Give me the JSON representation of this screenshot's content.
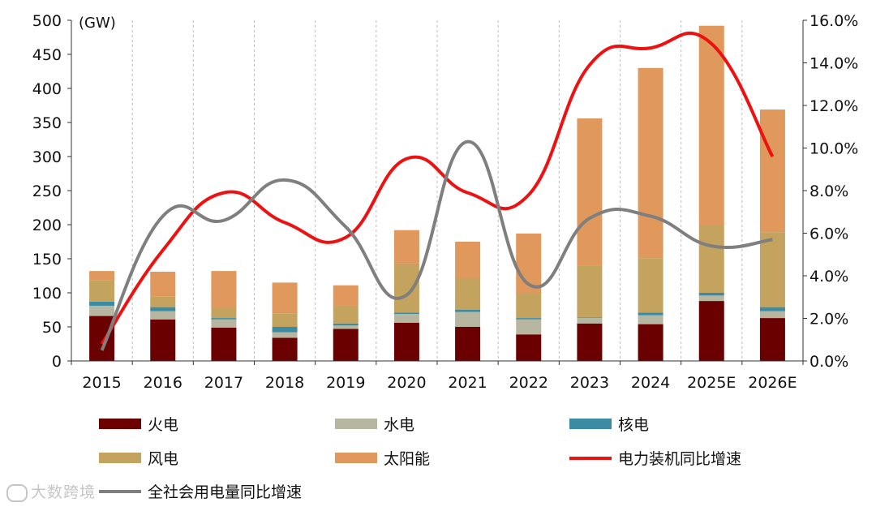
{
  "chart_data": {
    "type": "bar",
    "stacked": true,
    "unit_label": "(GW)",
    "categories": [
      "2015",
      "2016",
      "2017",
      "2018",
      "2019",
      "2020",
      "2021",
      "2022",
      "2023",
      "2024",
      "2025E",
      "2026E"
    ],
    "left_axis": {
      "min": 0,
      "max": 500,
      "step": 50,
      "ticks": [
        "0",
        "50",
        "100",
        "150",
        "200",
        "250",
        "300",
        "350",
        "400",
        "450",
        "500"
      ]
    },
    "right_axis": {
      "min": 0,
      "max": 16,
      "step": 2,
      "ticks": [
        "0.0%",
        "2.0%",
        "4.0%",
        "6.0%",
        "8.0%",
        "10.0%",
        "12.0%",
        "14.0%",
        "16.0%"
      ]
    },
    "series": [
      {
        "name": "火电",
        "color": "#6b0000",
        "values": [
          66,
          61,
          49,
          34,
          47,
          56,
          50,
          39,
          55,
          54,
          88,
          63
        ]
      },
      {
        "name": "水电",
        "color": "#b7b6a0",
        "values": [
          15,
          12,
          12,
          8,
          5,
          13,
          22,
          22,
          8,
          13,
          8,
          10
        ]
      },
      {
        "name": "核电",
        "color": "#3a8ba3",
        "values": [
          6,
          6,
          2,
          8,
          3,
          2,
          3,
          2,
          1,
          4,
          4,
          6
        ]
      },
      {
        "name": "风电",
        "color": "#c4a35e",
        "values": [
          31,
          16,
          15,
          20,
          26,
          72,
          47,
          37,
          76,
          80,
          100,
          110
        ]
      },
      {
        "name": "太阳能",
        "color": "#e0985d",
        "values": [
          14,
          36,
          54,
          45,
          30,
          49,
          53,
          87,
          216,
          279,
          292,
          180
        ]
      }
    ],
    "lines": [
      {
        "name": "电力装机同比增速",
        "color": "#ee1111",
        "axis": "right",
        "values": [
          0.8,
          5.2,
          7.9,
          6.5,
          5.8,
          9.5,
          7.9,
          7.8,
          13.9,
          14.7,
          14.9,
          9.6
        ]
      },
      {
        "name": "全社会用电量同比增速",
        "color": "#7f7f7f",
        "axis": "right",
        "values": [
          0.5,
          6.8,
          6.6,
          8.5,
          6.3,
          3.1,
          10.3,
          3.6,
          6.7,
          6.8,
          5.4,
          5.7
        ]
      }
    ],
    "legend": [
      {
        "name": "火电",
        "kind": "bar",
        "color": "#6b0000"
      },
      {
        "name": "水电",
        "kind": "bar",
        "color": "#b7b6a0"
      },
      {
        "name": "核电",
        "kind": "bar",
        "color": "#3a8ba3"
      },
      {
        "name": "风电",
        "kind": "bar",
        "color": "#c4a35e"
      },
      {
        "name": "太阳能",
        "kind": "bar",
        "color": "#e0985d"
      },
      {
        "name": "电力装机同比增速",
        "kind": "line",
        "color": "#ee1111"
      },
      {
        "name": "全社会用电量同比增速",
        "kind": "line",
        "color": "#7f7f7f"
      }
    ],
    "grid": "vertical-dashed",
    "legend_position": "bottom"
  },
  "watermark": {
    "text": "大数跨境"
  }
}
